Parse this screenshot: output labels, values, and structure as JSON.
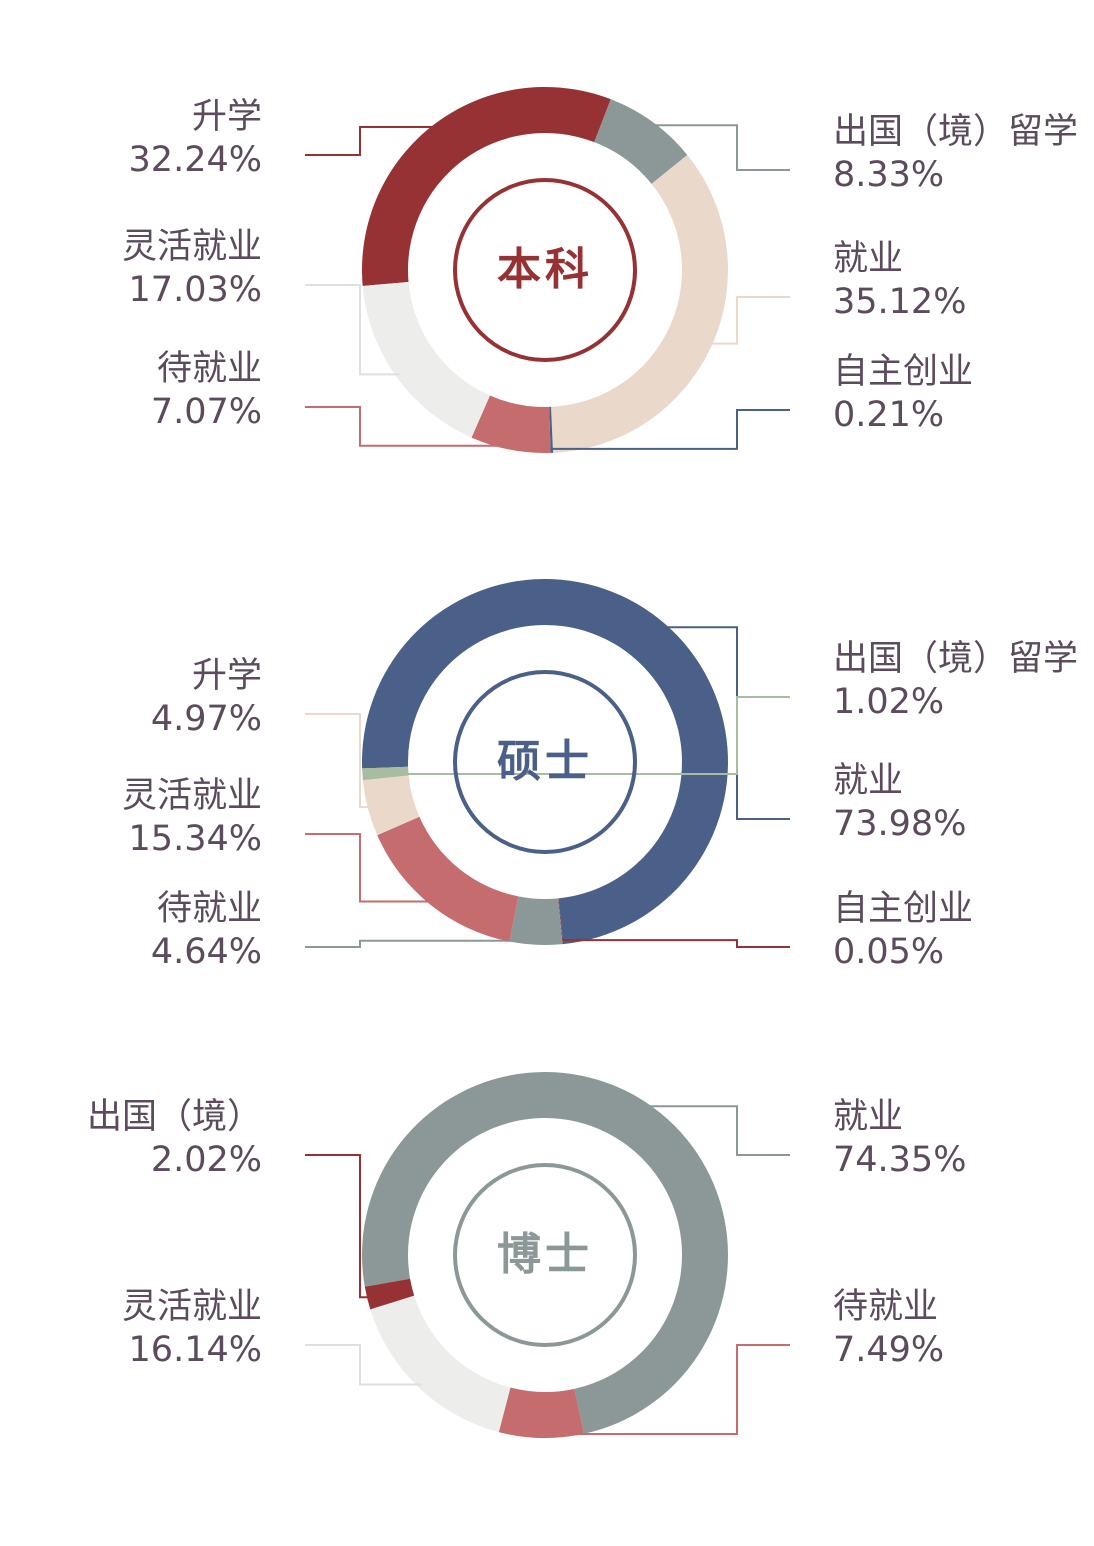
{
  "chart_data": [
    {
      "type": "donut",
      "title": "本科",
      "center_color": "#963234",
      "categories": [
        "升学",
        "出国（境）留学",
        "就业",
        "自主创业",
        "待就业",
        "灵活就业"
      ],
      "values": [
        32.24,
        8.33,
        35.12,
        0.21,
        7.07,
        17.03
      ],
      "value_labels": [
        "32.24%",
        "8.33%",
        "35.12%",
        "0.21%",
        "7.07%",
        "17.03%"
      ],
      "colors": [
        "#963234",
        "#8c9898",
        "#ead8cb",
        "#4a6088",
        "#c46c6e",
        "#edeeec"
      ]
    },
    {
      "type": "donut",
      "title": "硕士",
      "center_color": "#4a6088",
      "categories": [
        "就业",
        "自主创业",
        "待就业",
        "灵活就业",
        "升学",
        "出国（境）留学"
      ],
      "values": [
        73.98,
        0.05,
        4.64,
        15.34,
        4.97,
        1.02
      ],
      "value_labels": [
        "73.98%",
        "0.05%",
        "4.64%",
        "15.34%",
        "4.97%",
        "1.02%"
      ],
      "colors": [
        "#4a6088",
        "#963234",
        "#8c9898",
        "#c46c6e",
        "#ead8cb",
        "#a8bca0"
      ]
    },
    {
      "type": "donut",
      "title": "博士",
      "center_color": "#8c9898",
      "categories": [
        "就业",
        "待就业",
        "灵活就业",
        "出国（境）"
      ],
      "values": [
        74.35,
        7.49,
        16.14,
        2.02
      ],
      "value_labels": [
        "74.35%",
        "7.49%",
        "16.14%",
        "2.02%"
      ],
      "colors": [
        "#8c9898",
        "#c46c6e",
        "#edeeec",
        "#963234"
      ]
    }
  ]
}
